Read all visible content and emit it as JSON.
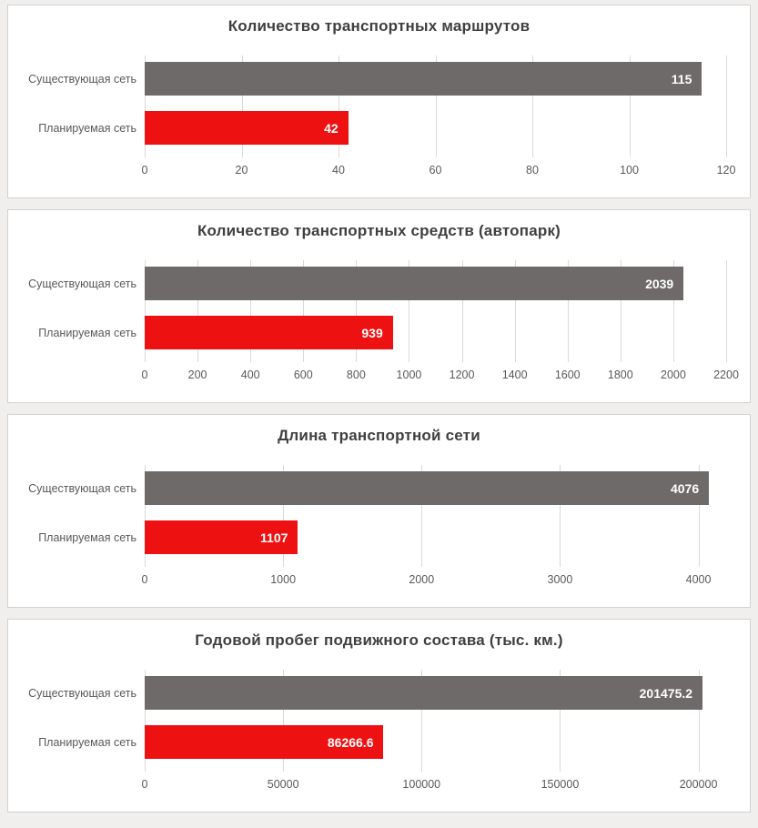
{
  "colors": {
    "existing_series": "#6d6a69",
    "planned_series": "#ee1111",
    "value_label": "#ffffff",
    "title_text": "#3f3f3f",
    "axis_text": "#595959",
    "gridline": "#d9d9d9",
    "panel_background": "#ffffff",
    "panel_border": "#d4d1d0",
    "page_background": "#f1efee"
  },
  "chart_data": [
    {
      "type": "bar",
      "orientation": "horizontal",
      "title": "Количество транспортных маршрутов",
      "categories": [
        "Существующая сеть",
        "Планируемая сеть"
      ],
      "values": [
        115,
        42
      ],
      "value_labels": [
        "115",
        "42"
      ],
      "xlim": [
        0,
        120
      ],
      "xmax": 120,
      "ticks": [
        0,
        20,
        40,
        60,
        80,
        100,
        120
      ],
      "tick_labels": [
        "0",
        "20",
        "40",
        "60",
        "80",
        "100",
        "120"
      ],
      "grid": true,
      "legend": "none"
    },
    {
      "type": "bar",
      "orientation": "horizontal",
      "title": "Количество транспортных средств (автопарк)",
      "categories": [
        "Существующая сеть",
        "Планируемая сеть"
      ],
      "values": [
        2039,
        939
      ],
      "value_labels": [
        "2039",
        "939"
      ],
      "xlim": [
        0,
        2200
      ],
      "xmax": 2200,
      "ticks": [
        0,
        200,
        400,
        600,
        800,
        1000,
        1200,
        1400,
        1600,
        1800,
        2000,
        2200
      ],
      "tick_labels": [
        "0",
        "200",
        "400",
        "600",
        "800",
        "1000",
        "1200",
        "1400",
        "1600",
        "1800",
        "2000",
        "2200"
      ],
      "grid": true,
      "legend": "none"
    },
    {
      "type": "bar",
      "orientation": "horizontal",
      "title": "Длина транспортной сети",
      "categories": [
        "Существующая сеть",
        "Планируемая сеть"
      ],
      "values": [
        4076,
        1107
      ],
      "value_labels": [
        "4076",
        "1107"
      ],
      "xlim": [
        0,
        4200
      ],
      "xmax": 4200,
      "ticks": [
        0,
        1000,
        2000,
        3000,
        4000
      ],
      "tick_labels": [
        "0",
        "1000",
        "2000",
        "3000",
        "4000"
      ],
      "grid": true,
      "legend": "none"
    },
    {
      "type": "bar",
      "orientation": "horizontal",
      "title": "Годовой пробег подвижного состава (тыс. км.)",
      "categories": [
        "Существующая сеть",
        "Планируемая сеть"
      ],
      "values": [
        201475.2,
        86266.6
      ],
      "value_labels": [
        "201475.2",
        "86266.6"
      ],
      "xlim": [
        0,
        210000
      ],
      "xmax": 210000,
      "ticks": [
        0,
        50000,
        100000,
        150000,
        200000
      ],
      "tick_labels": [
        "0",
        "50000",
        "100000",
        "150000",
        "200000"
      ],
      "grid": true,
      "legend": "none"
    }
  ]
}
